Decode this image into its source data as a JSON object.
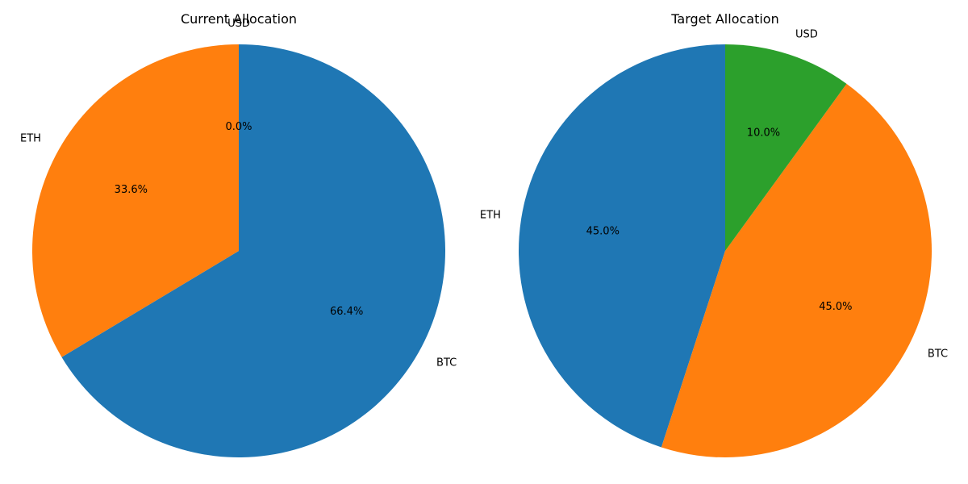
{
  "chart_data": [
    {
      "type": "pie",
      "title": "Current Allocation",
      "start_angle_deg": 90,
      "direction": "clockwise",
      "slices": [
        {
          "label": "BTC",
          "value": 66.4,
          "pct_label": "66.4%",
          "color": "#1f77b4"
        },
        {
          "label": "ETH",
          "value": 33.6,
          "pct_label": "33.6%",
          "color": "#ff7f0e"
        },
        {
          "label": "USD",
          "value": 0.0,
          "pct_label": "0.0%",
          "color": "#2ca02c"
        }
      ]
    },
    {
      "type": "pie",
      "title": "Target Allocation",
      "start_angle_deg": 90,
      "direction": "counterclockwise",
      "slices": [
        {
          "label": "ETH",
          "value": 45.0,
          "pct_label": "45.0%",
          "color": "#1f77b4"
        },
        {
          "label": "BTC",
          "value": 45.0,
          "pct_label": "45.0%",
          "color": "#ff7f0e"
        },
        {
          "label": "USD",
          "value": 10.0,
          "pct_label": "10.0%",
          "color": "#2ca02c"
        }
      ]
    }
  ]
}
